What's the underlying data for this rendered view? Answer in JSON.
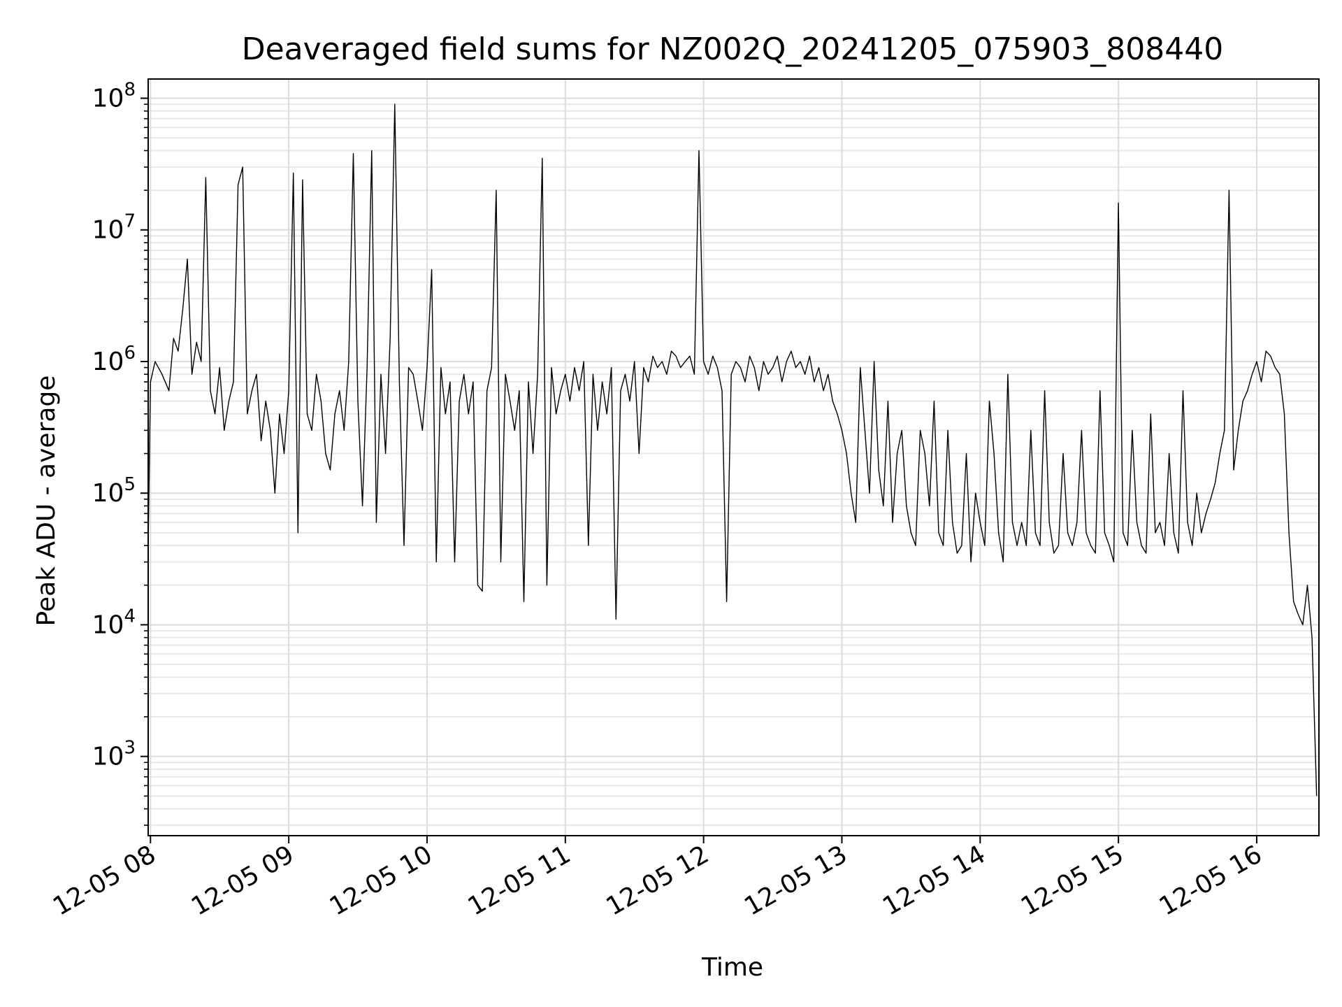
{
  "chart_data": {
    "type": "line",
    "title": "Deaveraged field sums for NZ002Q_20241205_075903_808440",
    "xlabel": "Time",
    "ylabel": "Peak ADU - average",
    "y_scale": "log",
    "ylim": [
      250,
      140000000
    ],
    "xlim": [
      "2024-12-05 07:59",
      "2024-12-05 16:27"
    ],
    "grid": "on (major and minor)",
    "line_color": "#000000",
    "x_ticks": [
      {
        "t": "2024-12-05 08:00",
        "label": "12-05 08"
      },
      {
        "t": "2024-12-05 09:00",
        "label": "12-05 09"
      },
      {
        "t": "2024-12-05 10:00",
        "label": "12-05 10"
      },
      {
        "t": "2024-12-05 11:00",
        "label": "12-05 11"
      },
      {
        "t": "2024-12-05 12:00",
        "label": "12-05 12"
      },
      {
        "t": "2024-12-05 13:00",
        "label": "12-05 13"
      },
      {
        "t": "2024-12-05 14:00",
        "label": "12-05 14"
      },
      {
        "t": "2024-12-05 15:00",
        "label": "12-05 15"
      },
      {
        "t": "2024-12-05 16:00",
        "label": "12-05 16"
      }
    ],
    "y_ticks": [
      {
        "value": 1000,
        "base": "10",
        "exp": "3"
      },
      {
        "value": 10000,
        "base": "10",
        "exp": "4"
      },
      {
        "value": 100000,
        "base": "10",
        "exp": "5"
      },
      {
        "value": 1000000,
        "base": "10",
        "exp": "6"
      },
      {
        "value": 10000000,
        "base": "10",
        "exp": "7"
      },
      {
        "value": 100000000,
        "base": "10",
        "exp": "8"
      }
    ],
    "series": [
      {
        "x": [
          "2024-12-05 07:59",
          "2024-12-05 08:00",
          "2024-12-05 08:02",
          "2024-12-05 08:05",
          "2024-12-05 08:08",
          "2024-12-05 08:10",
          "2024-12-05 08:12",
          "2024-12-05 08:14",
          "2024-12-05 08:16",
          "2024-12-05 08:18",
          "2024-12-05 08:20",
          "2024-12-05 08:22",
          "2024-12-05 08:24",
          "2024-12-05 08:26",
          "2024-12-05 08:28",
          "2024-12-05 08:30",
          "2024-12-05 08:32",
          "2024-12-05 08:34",
          "2024-12-05 08:36",
          "2024-12-05 08:38",
          "2024-12-05 08:40",
          "2024-12-05 08:42",
          "2024-12-05 08:44",
          "2024-12-05 08:46",
          "2024-12-05 08:48",
          "2024-12-05 08:50",
          "2024-12-05 08:52",
          "2024-12-05 08:54",
          "2024-12-05 08:56",
          "2024-12-05 08:58",
          "2024-12-05 09:00",
          "2024-12-05 09:02",
          "2024-12-05 09:04",
          "2024-12-05 09:06",
          "2024-12-05 09:08",
          "2024-12-05 09:10",
          "2024-12-05 09:12",
          "2024-12-05 09:14",
          "2024-12-05 09:16",
          "2024-12-05 09:18",
          "2024-12-05 09:20",
          "2024-12-05 09:22",
          "2024-12-05 09:24",
          "2024-12-05 09:26",
          "2024-12-05 09:28",
          "2024-12-05 09:30",
          "2024-12-05 09:32",
          "2024-12-05 09:34",
          "2024-12-05 09:36",
          "2024-12-05 09:38",
          "2024-12-05 09:40",
          "2024-12-05 09:42",
          "2024-12-05 09:44",
          "2024-12-05 09:46",
          "2024-12-05 09:48",
          "2024-12-05 09:50",
          "2024-12-05 09:52",
          "2024-12-05 09:54",
          "2024-12-05 09:56",
          "2024-12-05 09:58",
          "2024-12-05 10:00",
          "2024-12-05 10:02",
          "2024-12-05 10:04",
          "2024-12-05 10:06",
          "2024-12-05 10:08",
          "2024-12-05 10:10",
          "2024-12-05 10:12",
          "2024-12-05 10:14",
          "2024-12-05 10:16",
          "2024-12-05 10:18",
          "2024-12-05 10:20",
          "2024-12-05 10:22",
          "2024-12-05 10:24",
          "2024-12-05 10:26",
          "2024-12-05 10:28",
          "2024-12-05 10:30",
          "2024-12-05 10:32",
          "2024-12-05 10:34",
          "2024-12-05 10:36",
          "2024-12-05 10:38",
          "2024-12-05 10:40",
          "2024-12-05 10:42",
          "2024-12-05 10:44",
          "2024-12-05 10:46",
          "2024-12-05 10:48",
          "2024-12-05 10:50",
          "2024-12-05 10:52",
          "2024-12-05 10:54",
          "2024-12-05 10:56",
          "2024-12-05 10:58",
          "2024-12-05 11:00",
          "2024-12-05 11:02",
          "2024-12-05 11:04",
          "2024-12-05 11:06",
          "2024-12-05 11:08",
          "2024-12-05 11:10",
          "2024-12-05 11:12",
          "2024-12-05 11:14",
          "2024-12-05 11:16",
          "2024-12-05 11:18",
          "2024-12-05 11:20",
          "2024-12-05 11:22",
          "2024-12-05 11:24",
          "2024-12-05 11:26",
          "2024-12-05 11:28",
          "2024-12-05 11:30",
          "2024-12-05 11:32",
          "2024-12-05 11:34",
          "2024-12-05 11:36",
          "2024-12-05 11:38",
          "2024-12-05 11:40",
          "2024-12-05 11:42",
          "2024-12-05 11:44",
          "2024-12-05 11:46",
          "2024-12-05 11:48",
          "2024-12-05 11:50",
          "2024-12-05 11:52",
          "2024-12-05 11:54",
          "2024-12-05 11:56",
          "2024-12-05 11:58",
          "2024-12-05 12:00",
          "2024-12-05 12:02",
          "2024-12-05 12:04",
          "2024-12-05 12:06",
          "2024-12-05 12:08",
          "2024-12-05 12:10",
          "2024-12-05 12:12",
          "2024-12-05 12:14",
          "2024-12-05 12:16",
          "2024-12-05 12:18",
          "2024-12-05 12:20",
          "2024-12-05 12:22",
          "2024-12-05 12:24",
          "2024-12-05 12:26",
          "2024-12-05 12:28",
          "2024-12-05 12:30",
          "2024-12-05 12:32",
          "2024-12-05 12:34",
          "2024-12-05 12:36",
          "2024-12-05 12:38",
          "2024-12-05 12:40",
          "2024-12-05 12:42",
          "2024-12-05 12:44",
          "2024-12-05 12:46",
          "2024-12-05 12:48",
          "2024-12-05 12:50",
          "2024-12-05 12:52",
          "2024-12-05 12:54",
          "2024-12-05 12:56",
          "2024-12-05 12:58",
          "2024-12-05 13:00",
          "2024-12-05 13:02",
          "2024-12-05 13:04",
          "2024-12-05 13:06",
          "2024-12-05 13:08",
          "2024-12-05 13:10",
          "2024-12-05 13:12",
          "2024-12-05 13:14",
          "2024-12-05 13:16",
          "2024-12-05 13:18",
          "2024-12-05 13:20",
          "2024-12-05 13:22",
          "2024-12-05 13:24",
          "2024-12-05 13:26",
          "2024-12-05 13:28",
          "2024-12-05 13:30",
          "2024-12-05 13:32",
          "2024-12-05 13:34",
          "2024-12-05 13:36",
          "2024-12-05 13:38",
          "2024-12-05 13:40",
          "2024-12-05 13:42",
          "2024-12-05 13:44",
          "2024-12-05 13:46",
          "2024-12-05 13:48",
          "2024-12-05 13:50",
          "2024-12-05 13:52",
          "2024-12-05 13:54",
          "2024-12-05 13:56",
          "2024-12-05 13:58",
          "2024-12-05 14:00",
          "2024-12-05 14:02",
          "2024-12-05 14:04",
          "2024-12-05 14:06",
          "2024-12-05 14:08",
          "2024-12-05 14:10",
          "2024-12-05 14:12",
          "2024-12-05 14:14",
          "2024-12-05 14:16",
          "2024-12-05 14:18",
          "2024-12-05 14:20",
          "2024-12-05 14:22",
          "2024-12-05 14:24",
          "2024-12-05 14:26",
          "2024-12-05 14:28",
          "2024-12-05 14:30",
          "2024-12-05 14:32",
          "2024-12-05 14:34",
          "2024-12-05 14:36",
          "2024-12-05 14:38",
          "2024-12-05 14:40",
          "2024-12-05 14:42",
          "2024-12-05 14:44",
          "2024-12-05 14:46",
          "2024-12-05 14:48",
          "2024-12-05 14:50",
          "2024-12-05 14:52",
          "2024-12-05 14:54",
          "2024-12-05 14:56",
          "2024-12-05 14:58",
          "2024-12-05 15:00",
          "2024-12-05 15:02",
          "2024-12-05 15:04",
          "2024-12-05 15:06",
          "2024-12-05 15:08",
          "2024-12-05 15:10",
          "2024-12-05 15:12",
          "2024-12-05 15:14",
          "2024-12-05 15:16",
          "2024-12-05 15:18",
          "2024-12-05 15:20",
          "2024-12-05 15:22",
          "2024-12-05 15:24",
          "2024-12-05 15:26",
          "2024-12-05 15:28",
          "2024-12-05 15:30",
          "2024-12-05 15:32",
          "2024-12-05 15:34",
          "2024-12-05 15:36",
          "2024-12-05 15:38",
          "2024-12-05 15:40",
          "2024-12-05 15:42",
          "2024-12-05 15:44",
          "2024-12-05 15:46",
          "2024-12-05 15:48",
          "2024-12-05 15:50",
          "2024-12-05 15:52",
          "2024-12-05 15:54",
          "2024-12-05 15:56",
          "2024-12-05 15:58",
          "2024-12-05 16:00",
          "2024-12-05 16:02",
          "2024-12-05 16:04",
          "2024-12-05 16:06",
          "2024-12-05 16:08",
          "2024-12-05 16:10",
          "2024-12-05 16:12",
          "2024-12-05 16:14",
          "2024-12-05 16:16",
          "2024-12-05 16:18",
          "2024-12-05 16:20",
          "2024-12-05 16:22",
          "2024-12-05 16:24",
          "2024-12-05 16:26"
        ],
        "y": [
          40000,
          700000,
          1000000,
          800000,
          600000,
          1500000,
          1200000,
          2500000,
          6000000,
          800000,
          1400000,
          1000000,
          25000000,
          600000,
          400000,
          900000,
          300000,
          500000,
          700000,
          22000000,
          30000000,
          400000,
          600000,
          800000,
          250000,
          500000,
          300000,
          100000,
          400000,
          200000,
          600000,
          27000000,
          50000,
          24000000,
          400000,
          300000,
          800000,
          500000,
          200000,
          150000,
          400000,
          600000,
          300000,
          1000000,
          38000000,
          500000,
          80000,
          900000,
          40000000,
          60000,
          800000,
          200000,
          1500000,
          90000000,
          700000,
          40000,
          900000,
          800000,
          500000,
          300000,
          900000,
          5000000,
          30000,
          900000,
          400000,
          700000,
          30000,
          500000,
          800000,
          400000,
          700000,
          20000,
          18000,
          600000,
          900000,
          20000000,
          30000,
          800000,
          500000,
          300000,
          600000,
          15000,
          700000,
          200000,
          800000,
          35000000,
          20000,
          900000,
          400000,
          600000,
          800000,
          500000,
          900000,
          600000,
          1000000,
          40000,
          800000,
          300000,
          700000,
          400000,
          900000,
          11000,
          600000,
          800000,
          500000,
          1000000,
          200000,
          900000,
          700000,
          1100000,
          900000,
          1000000,
          800000,
          1200000,
          1100000,
          900000,
          1000000,
          1100000,
          800000,
          40000000,
          1000000,
          800000,
          1100000,
          900000,
          600000,
          15000,
          800000,
          1000000,
          900000,
          700000,
          1100000,
          900000,
          600000,
          1000000,
          800000,
          900000,
          1100000,
          700000,
          1000000,
          1200000,
          900000,
          1000000,
          800000,
          1100000,
          700000,
          900000,
          600000,
          800000,
          500000,
          400000,
          300000,
          200000,
          100000,
          60000,
          900000,
          300000,
          100000,
          1000000,
          150000,
          80000,
          500000,
          60000,
          200000,
          300000,
          80000,
          50000,
          40000,
          300000,
          200000,
          80000,
          500000,
          50000,
          40000,
          300000,
          60000,
          35000,
          40000,
          200000,
          30000,
          100000,
          60000,
          40000,
          500000,
          200000,
          50000,
          30000,
          800000,
          60000,
          40000,
          60000,
          40000,
          300000,
          50000,
          40000,
          600000,
          60000,
          35000,
          40000,
          200000,
          50000,
          40000,
          60000,
          300000,
          50000,
          40000,
          35000,
          600000,
          50000,
          40000,
          30000,
          16000000,
          50000,
          40000,
          300000,
          60000,
          40000,
          35000,
          400000,
          50000,
          60000,
          40000,
          200000,
          50000,
          35000,
          600000,
          60000,
          40000,
          100000,
          50000,
          70000,
          90000,
          120000,
          200000,
          300000,
          20000000,
          150000,
          300000,
          500000,
          600000,
          800000,
          1000000,
          700000,
          1200000,
          1100000,
          900000,
          800000,
          400000,
          50000,
          15000,
          12000,
          10000,
          20000,
          8000,
          500
        ]
      }
    ]
  }
}
